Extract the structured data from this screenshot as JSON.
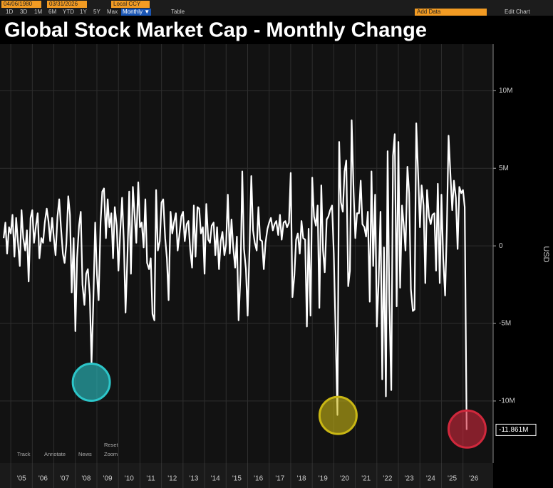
{
  "toolbar": {
    "start_date": "04/06/1980",
    "end_date": "03/31/2026",
    "currency": "Local CCY",
    "ranges": [
      "1D",
      "3D",
      "1M",
      "6M",
      "YTD",
      "1Y",
      "5Y",
      "Max"
    ],
    "period": "Monthly ▼",
    "table": "Table",
    "add_data": "Add Data",
    "edit_chart": "Edit Chart"
  },
  "chart_tools": {
    "reset": "Reset",
    "items": [
      "Track",
      "Annotate",
      "News",
      "Zoom"
    ]
  },
  "chart_data": {
    "type": "line",
    "title": "Global Stock Market Cap - Monthly Change",
    "y_axis_label": "USD",
    "color": "#ffffff",
    "grid": true,
    "xlim": [
      2004.5,
      2027.4
    ],
    "ylim": [
      -14,
      13
    ],
    "xticks": [
      {
        "value": 2005,
        "label": "'05"
      },
      {
        "value": 2006,
        "label": "'06"
      },
      {
        "value": 2007,
        "label": "'07"
      },
      {
        "value": 2008,
        "label": "'08"
      },
      {
        "value": 2009,
        "label": "'09"
      },
      {
        "value": 2010,
        "label": "'10"
      },
      {
        "value": 2011,
        "label": "'11"
      },
      {
        "value": 2012,
        "label": "'12"
      },
      {
        "value": 2013,
        "label": "'13"
      },
      {
        "value": 2014,
        "label": "'14"
      },
      {
        "value": 2015,
        "label": "'15"
      },
      {
        "value": 2016,
        "label": "'16"
      },
      {
        "value": 2017,
        "label": "'17"
      },
      {
        "value": 2018,
        "label": "'18"
      },
      {
        "value": 2019,
        "label": "'19"
      },
      {
        "value": 2020,
        "label": "'20"
      },
      {
        "value": 2021,
        "label": "'21"
      },
      {
        "value": 2022,
        "label": "'22"
      },
      {
        "value": 2023,
        "label": "'23"
      },
      {
        "value": 2024,
        "label": "'24"
      },
      {
        "value": 2025,
        "label": "'25"
      },
      {
        "value": 2026,
        "label": "'26"
      }
    ],
    "yticks": [
      {
        "value": 10,
        "label": "10M"
      },
      {
        "value": 5,
        "label": "5M"
      },
      0,
      {
        "value": -5,
        "label": "-5M"
      },
      {
        "value": -10,
        "label": "-10M"
      }
    ],
    "annotations": [
      {
        "value": -11.861,
        "label": "-11.861M"
      }
    ],
    "highlights": [
      {
        "x": 2008.74,
        "y": -8.79,
        "color": "#2cc6c9"
      },
      {
        "x": 2020.2,
        "y": -10.93,
        "color": "#c9b714"
      },
      {
        "x": 2026.19,
        "y": -11.81,
        "color": "#d0283c"
      }
    ],
    "x": [
      2004.67,
      2004.75,
      2004.83,
      2004.92,
      2005,
      2005.08,
      2005.17,
      2005.25,
      2005.33,
      2005.42,
      2005.5,
      2005.58,
      2005.67,
      2005.75,
      2005.83,
      2005.92,
      2006,
      2006.08,
      2006.17,
      2006.25,
      2006.33,
      2006.42,
      2006.5,
      2006.58,
      2006.67,
      2006.75,
      2006.83,
      2006.92,
      2007,
      2007.08,
      2007.17,
      2007.25,
      2007.33,
      2007.42,
      2007.5,
      2007.58,
      2007.67,
      2007.75,
      2007.83,
      2007.92,
      2008,
      2008.08,
      2008.17,
      2008.25,
      2008.33,
      2008.42,
      2008.5,
      2008.58,
      2008.67,
      2008.75,
      2008.83,
      2008.92,
      2009,
      2009.08,
      2009.17,
      2009.25,
      2009.33,
      2009.42,
      2009.5,
      2009.58,
      2009.67,
      2009.75,
      2009.83,
      2009.92,
      2010,
      2010.08,
      2010.17,
      2010.25,
      2010.33,
      2010.42,
      2010.5,
      2010.58,
      2010.67,
      2010.75,
      2010.83,
      2010.92,
      2011,
      2011.08,
      2011.17,
      2011.25,
      2011.33,
      2011.42,
      2011.5,
      2011.58,
      2011.67,
      2011.75,
      2011.83,
      2011.92,
      2012,
      2012.08,
      2012.17,
      2012.25,
      2012.33,
      2012.42,
      2012.5,
      2012.58,
      2012.67,
      2012.75,
      2012.83,
      2012.92,
      2013,
      2013.08,
      2013.17,
      2013.25,
      2013.33,
      2013.42,
      2013.5,
      2013.58,
      2013.67,
      2013.75,
      2013.83,
      2013.92,
      2014,
      2014.08,
      2014.17,
      2014.25,
      2014.33,
      2014.42,
      2014.5,
      2014.58,
      2014.67,
      2014.75,
      2014.83,
      2014.92,
      2015,
      2015.08,
      2015.17,
      2015.25,
      2015.33,
      2015.42,
      2015.5,
      2015.58,
      2015.67,
      2015.75,
      2015.83,
      2015.92,
      2016,
      2016.08,
      2016.17,
      2016.25,
      2016.33,
      2016.42,
      2016.5,
      2016.58,
      2016.67,
      2016.75,
      2016.83,
      2016.92,
      2017,
      2017.08,
      2017.17,
      2017.25,
      2017.33,
      2017.42,
      2017.5,
      2017.58,
      2017.67,
      2017.75,
      2017.83,
      2017.92,
      2018,
      2018.08,
      2018.17,
      2018.25,
      2018.33,
      2018.42,
      2018.5,
      2018.58,
      2018.67,
      2018.75,
      2018.83,
      2018.92,
      2019,
      2019.08,
      2019.17,
      2019.25,
      2019.33,
      2019.42,
      2019.5,
      2019.58,
      2019.67,
      2019.75,
      2019.83,
      2019.92,
      2020,
      2020.08,
      2020.17,
      2020.25,
      2020.33,
      2020.42,
      2020.5,
      2020.58,
      2020.67,
      2020.75,
      2020.83,
      2020.92,
      2021,
      2021.08,
      2021.17,
      2021.25,
      2021.33,
      2021.42,
      2021.5,
      2021.58,
      2021.67,
      2021.75,
      2021.83,
      2021.92,
      2022,
      2022.08,
      2022.17,
      2022.25,
      2022.33,
      2022.42,
      2022.5,
      2022.58,
      2022.67,
      2022.75,
      2022.83,
      2022.92,
      2023,
      2023.08,
      2023.17,
      2023.25,
      2023.33,
      2023.42,
      2023.5,
      2023.58,
      2023.67,
      2023.75,
      2023.83,
      2023.92,
      2024,
      2024.08,
      2024.17,
      2024.25,
      2024.33,
      2024.42,
      2024.5,
      2024.58,
      2024.67,
      2024.75,
      2024.83,
      2024.92,
      2025,
      2025.08,
      2025.17,
      2025.25,
      2025.33,
      2025.42,
      2025.5,
      2025.58,
      2025.67,
      2025.75,
      2025.83,
      2025.92,
      2026,
      2026.08,
      2026.17
    ],
    "values": [
      0.5,
      1.5,
      -0.5,
      1.2,
      0.8,
      2,
      -0.7,
      1.8,
      0.3,
      -1.3,
      2.3,
      0.5,
      -0.3,
      1,
      -2.3,
      1.8,
      2.3,
      0.2,
      1.3,
      2.1,
      -0.8,
      0.5,
      0.2,
      1.5,
      2.4,
      1.6,
      0.3,
      1.8,
      0.5,
      -0.6,
      1.9,
      3,
      1.2,
      -0.5,
      -1.1,
      0.1,
      3.2,
      2,
      -3,
      0.5,
      -5.5,
      -0.8,
      1.3,
      2.2,
      -2.5,
      -3.8,
      -1.8,
      -1.5,
      -3.2,
      -7.6,
      -3.8,
      1.5,
      -1.8,
      -3.5,
      1.5,
      3.5,
      3.7,
      0.5,
      3,
      1.2,
      2.1,
      -0.8,
      2.5,
      1.3,
      -1.6,
      0.8,
      3.1,
      0.3,
      -4.3,
      -0.6,
      3.5,
      -1.8,
      3.8,
      2,
      0.2,
      4.1,
      1.2,
      1.5,
      -0.1,
      3,
      -1.1,
      -1.5,
      -0.8,
      -4.4,
      -4.8,
      3.6,
      -0.3,
      0.3,
      2.8,
      3,
      0.5,
      -0.8,
      -3.5,
      2.2,
      0.8,
      1.5,
      2.1,
      -0.3,
      0.7,
      1.9,
      2.2,
      0.3,
      1.4,
      1.6,
      -0.2,
      -1.4,
      2.6,
      -0.7,
      2.5,
      2.4,
      0.8,
      1.2,
      -1.8,
      2.7,
      0.4,
      0.2,
      1.3,
      1.5,
      -0.6,
      1.2,
      -1.5,
      0.3,
      0.9,
      -0.6,
      0.1,
      3.3,
      -0.5,
      1.7,
      -0.1,
      -1.4,
      0.6,
      -4.8,
      -1.8,
      4.8,
      -0.2,
      -1.5,
      -4.5,
      -0.5,
      4.5,
      1,
      0.2,
      -0.3,
      2.5,
      0.4,
      0.3,
      -1.5,
      0.2,
      1.1,
      1.5,
      1.8,
      1,
      1.4,
      1.6,
      0.7,
      2,
      0.4,
      1.5,
      1.6,
      1.2,
      1.5,
      4.7,
      -3.3,
      -1.9,
      0.4,
      0.8,
      -0.5,
      1.6,
      0.5,
      0.4,
      -5.2,
      1.1,
      -4.5,
      4.4,
      1.9,
      1.3,
      2.6,
      -4,
      3.9,
      -0.3,
      -1.7,
      1.7,
      1.9,
      2.3,
      2.6,
      -0.5,
      -5.3,
      -10.9,
      6.7,
      2.8,
      2.2,
      4.8,
      5.5,
      -2.6,
      -1.6,
      8.1,
      3.5,
      0.5,
      2.1,
      2.1,
      4.2,
      1.4,
      1.2,
      0.6,
      2.2,
      -3.6,
      4.8,
      -1.3,
      3.3,
      -5.2,
      -2.4,
      2.2,
      -8.6,
      -0.1,
      -9.7,
      6.1,
      -3.7,
      -9.3,
      5.8,
      7.2,
      -3.9,
      6.7,
      -2.7,
      2.6,
      1.3,
      -0.3,
      5.1,
      3.4,
      -2.8,
      -4.2,
      -4.1,
      7.9,
      4.5,
      1.2,
      3.9,
      2.6,
      -2.4,
      3.6,
      1.9,
      1.4,
      2,
      2.1,
      -1.6,
      4,
      -2.4,
      3.3,
      -0.8,
      -3.2,
      1.1,
      7.1,
      4.5,
      2.3,
      4.2,
      3.1,
      -0.2,
      3.8,
      3.4,
      3.6,
      2.5,
      -11.861
    ]
  }
}
